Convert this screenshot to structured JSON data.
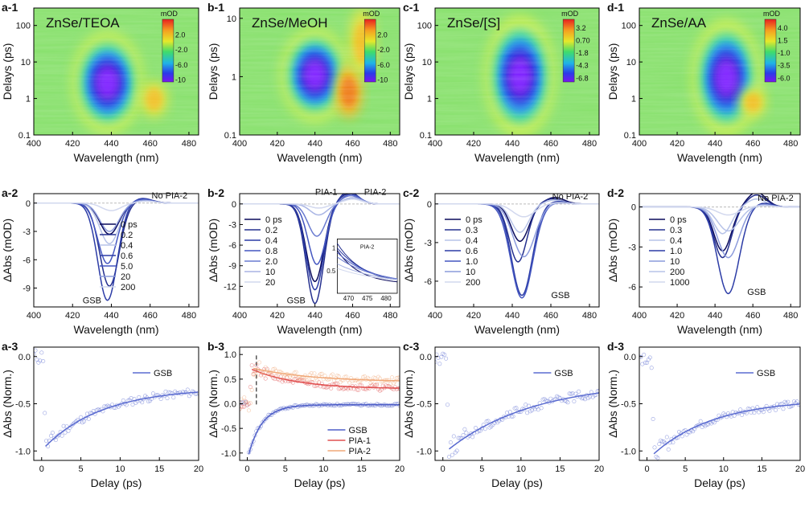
{
  "chart_data": [
    {
      "id": "a-1",
      "type": "heatmap",
      "panel_label": "a-1",
      "title": "ZnSe/TEOA",
      "xlabel": "Wavelength (nm)",
      "ylabel": "Delays (ps)",
      "xlim": [
        400,
        485
      ],
      "ylim_log": [
        0.1,
        300
      ],
      "xticks": [
        "400",
        "420",
        "440",
        "460",
        "480"
      ],
      "yticks": [
        "0.1",
        "1",
        "10",
        "100"
      ],
      "colorbar": {
        "unit": "mOD",
        "ticks": [
          "2.0",
          "-2.0",
          "-6.0",
          "-10"
        ],
        "range": [
          4,
          -12
        ]
      },
      "features": [
        {
          "label": "GSB",
          "center_wavelength": 438,
          "delay_range_ps": [
            0.3,
            40
          ],
          "value": -10
        },
        {
          "label": "PIA",
          "center_wavelength": 462,
          "delay_range_ps": [
            0.3,
            3
          ],
          "value": 1
        }
      ]
    },
    {
      "id": "b-1",
      "type": "heatmap",
      "panel_label": "b-1",
      "title": "ZnSe/MeOH",
      "xlabel": "Wavelength (nm)",
      "ylabel": "Delays (ps)",
      "xlim": [
        400,
        485
      ],
      "ylim_log": [
        0.1,
        15
      ],
      "xticks": [
        "400",
        "420",
        "440",
        "460",
        "480"
      ],
      "yticks": [
        "0.1",
        "1",
        "10"
      ],
      "colorbar": {
        "unit": "mOD",
        "ticks": [
          "2.0",
          "-2.0",
          "-6.0",
          "-10"
        ],
        "range": [
          4,
          -12
        ]
      },
      "features": [
        {
          "label": "GSB",
          "center_wavelength": 440,
          "delay_range_ps": [
            0.3,
            5
          ],
          "value": -11
        },
        {
          "label": "PIA-1",
          "center_wavelength": 458,
          "delay_range_ps": [
            0.2,
            1.5
          ],
          "value": 3
        },
        {
          "label": "PIA-2",
          "center_wavelength": 465,
          "delay_range_ps": [
            1,
            15
          ],
          "value": 2
        }
      ]
    },
    {
      "id": "c-1",
      "type": "heatmap",
      "panel_label": "c-1",
      "title": "ZnSe/[S]",
      "xlabel": "Wavelength (nm)",
      "ylabel": "Delays (ps)",
      "xlim": [
        400,
        485
      ],
      "ylim_log": [
        0.1,
        300
      ],
      "xticks": [
        "400",
        "420",
        "440",
        "460",
        "480"
      ],
      "yticks": [
        "0.1",
        "1",
        "10",
        "100"
      ],
      "colorbar": {
        "unit": "mOD",
        "ticks": [
          "3.2",
          "0.70",
          "-1.8",
          "-4.3",
          "-6.8"
        ],
        "range": [
          4.5,
          -7.5
        ]
      },
      "features": [
        {
          "label": "GSB",
          "center_wavelength": 444,
          "delay_range_ps": [
            0.3,
            100
          ],
          "value": -7
        }
      ]
    },
    {
      "id": "d-1",
      "type": "heatmap",
      "panel_label": "d-1",
      "title": "ZnSe/AA",
      "xlabel": "Wavelength (nm)",
      "ylabel": "Delays (ps)",
      "xlim": [
        400,
        485
      ],
      "ylim_log": [
        0.1,
        300
      ],
      "xticks": [
        "400",
        "420",
        "440",
        "460",
        "480"
      ],
      "yticks": [
        "0.1",
        "1",
        "10",
        "100"
      ],
      "colorbar": {
        "unit": "mOD",
        "ticks": [
          "4.0",
          "1.5",
          "-1.0",
          "-3.5",
          "-6.0"
        ],
        "range": [
          5.5,
          -7.5
        ]
      },
      "features": [
        {
          "label": "GSB",
          "center_wavelength": 446,
          "delay_range_ps": [
            0.3,
            80
          ],
          "value": -7
        },
        {
          "label": "PIA",
          "center_wavelength": 460,
          "delay_range_ps": [
            0.3,
            2
          ],
          "value": 1
        }
      ]
    },
    {
      "id": "a-2",
      "type": "line",
      "panel_label": "a-2",
      "xlabel": "Wavelength (nm)",
      "ylabel": "ΔAbs (mOD)",
      "xlim": [
        400,
        485
      ],
      "ylim": [
        -11,
        1
      ],
      "xticks": [
        400,
        420,
        440,
        460,
        480
      ],
      "yticks": [
        0,
        -3,
        -6,
        -9
      ],
      "annotations": [
        {
          "text": "No PIA-2",
          "x": 470,
          "y": 0.5
        },
        {
          "text": "GSB",
          "x": 430,
          "y": -10.6
        }
      ],
      "series": [
        {
          "name": "0 ps",
          "color": "#0a0a5c",
          "center": 439,
          "depth": -3.3,
          "width": 7,
          "pia": 0.3
        },
        {
          "name": "0.2",
          "color": "#25308f",
          "center": 439,
          "depth": -8.8,
          "width": 7,
          "pia": 0.4
        },
        {
          "name": "0.4",
          "color": "#b7c3e8",
          "center": 439,
          "depth": -4.3,
          "width": 7,
          "pia": 0.3
        },
        {
          "name": "0.6",
          "color": "#2c3ca6",
          "center": 438,
          "depth": -10.3,
          "width": 7,
          "pia": 0.5
        },
        {
          "name": "5.0",
          "color": "#4456c0",
          "center": 438,
          "depth": -6.4,
          "width": 7,
          "pia": 0.4
        },
        {
          "name": "20",
          "color": "#8c9bdc",
          "center": 439,
          "depth": -3.0,
          "width": 7,
          "pia": 0.3
        },
        {
          "name": "200",
          "color": "#d2d8ee",
          "center": 440,
          "depth": -0.8,
          "width": 7,
          "pia": 0.2
        }
      ]
    },
    {
      "id": "b-2",
      "type": "line",
      "panel_label": "b-2",
      "xlabel": "Wavelength (nm)",
      "ylabel": "ΔAbs (mOD)",
      "xlim": [
        400,
        485
      ],
      "ylim": [
        -15,
        1.5
      ],
      "xticks": [
        400,
        420,
        440,
        460,
        480
      ],
      "yticks": [
        0,
        -3,
        -6,
        -9,
        -12
      ],
      "annotations": [
        {
          "text": "PIA-1",
          "x": 446,
          "y": 1.3
        },
        {
          "text": "PIA-2",
          "x": 472,
          "y": 1.3
        },
        {
          "text": "GSB",
          "x": 430,
          "y": -14.5
        }
      ],
      "inset": {
        "title": "PIA-2",
        "xticks": [
          470,
          475,
          480
        ],
        "yticks": [
          0.5,
          1.0
        ],
        "xlim": [
          467,
          483
        ],
        "ylim": [
          0,
          1.2
        ]
      },
      "series": [
        {
          "name": "0 ps",
          "color": "#0a0a5c",
          "center": 440,
          "depth": -11.3,
          "width": 6.5,
          "pia": 1.5
        },
        {
          "name": "0.2",
          "color": "#25308f",
          "center": 440,
          "depth": -14.5,
          "width": 6.5,
          "pia": 1.8
        },
        {
          "name": "0.4",
          "color": "#2c3ca6",
          "center": 440,
          "depth": -12.5,
          "width": 6.5,
          "pia": 1.6
        },
        {
          "name": "0.8",
          "color": "#4456c0",
          "center": 441,
          "depth": -8.8,
          "width": 6.5,
          "pia": 1.4
        },
        {
          "name": "2.0",
          "color": "#6a7bd0",
          "center": 441,
          "depth": -4.7,
          "width": 6.5,
          "pia": 1.2
        },
        {
          "name": "10",
          "color": "#a8b4e4",
          "center": 442,
          "depth": -1.6,
          "width": 6.5,
          "pia": 0.9
        },
        {
          "name": "20",
          "color": "#d2d8ee",
          "center": 442,
          "depth": -0.6,
          "width": 6.5,
          "pia": 0.7
        }
      ]
    },
    {
      "id": "c-2",
      "type": "line",
      "panel_label": "c-2",
      "xlabel": "Wavelength (nm)",
      "ylabel": "ΔAbs (mOD)",
      "xlim": [
        400,
        485
      ],
      "ylim": [
        -8,
        0.8
      ],
      "xticks": [
        400,
        420,
        440,
        460,
        480
      ],
      "yticks": [
        0,
        -3,
        -6
      ],
      "annotations": [
        {
          "text": "No PIA-2",
          "x": 470,
          "y": 0.35
        },
        {
          "text": "GSB",
          "x": 465,
          "y": -7.3
        }
      ],
      "series": [
        {
          "name": "0 ps",
          "color": "#0a0a5c",
          "center": 444,
          "depth": -2.9,
          "width": 6.5,
          "pia": 0.5
        },
        {
          "name": "0.3",
          "color": "#25308f",
          "center": 443,
          "depth": -4.5,
          "width": 6.5,
          "pia": 0.4
        },
        {
          "name": "0.4",
          "color": "#b7c3e8",
          "center": 444,
          "depth": -2.2,
          "width": 6.5,
          "pia": 0.3
        },
        {
          "name": "0.6",
          "color": "#2c3ca6",
          "center": 445,
          "depth": -7.1,
          "width": 7.5,
          "pia": 0.2
        },
        {
          "name": "1.0",
          "color": "#4456c0",
          "center": 445,
          "depth": -7.3,
          "width": 8,
          "pia": 0.1
        },
        {
          "name": "10",
          "color": "#8c9bdc",
          "center": 446,
          "depth": -4.1,
          "width": 8,
          "pia": 0.1
        },
        {
          "name": "200",
          "color": "#d2d8ee",
          "center": 446,
          "depth": -1.0,
          "width": 8,
          "pia": 0.1
        }
      ]
    },
    {
      "id": "d-2",
      "type": "line",
      "panel_label": "d-2",
      "xlabel": "Wavelength (nm)",
      "ylabel": "ΔAbs (mOD)",
      "xlim": [
        400,
        485
      ],
      "ylim": [
        -7.5,
        1.0
      ],
      "xticks": [
        400,
        420,
        440,
        460,
        480
      ],
      "yticks": [
        0,
        -3,
        -6
      ],
      "annotations": [
        {
          "text": "No PIA-2",
          "x": 472,
          "y": 0.45
        },
        {
          "text": "GSB",
          "x": 462,
          "y": -6.6
        }
      ],
      "series": [
        {
          "name": "0 ps",
          "color": "#0a0a5c",
          "center": 444,
          "depth": -3.3,
          "width": 6.5,
          "pia": 1.1
        },
        {
          "name": "0.3",
          "color": "#25308f",
          "center": 444,
          "depth": -3.8,
          "width": 6.5,
          "pia": 0.9
        },
        {
          "name": "0.4",
          "color": "#b7c3e8",
          "center": 444,
          "depth": -2.0,
          "width": 6.5,
          "pia": 0.6
        },
        {
          "name": "1.0",
          "color": "#2c3ca6",
          "center": 447,
          "depth": -6.5,
          "width": 8,
          "pia": 0.3
        },
        {
          "name": "10",
          "color": "#8c9bdc",
          "center": 447,
          "depth": -3.8,
          "width": 8,
          "pia": 0.2
        },
        {
          "name": "200",
          "color": "#b7c3e8",
          "center": 447,
          "depth": -1.8,
          "width": 8,
          "pia": 0.1
        },
        {
          "name": "1000",
          "color": "#d2d8ee",
          "center": 447,
          "depth": -0.6,
          "width": 8,
          "pia": 0.1
        }
      ]
    },
    {
      "id": "a-3",
      "type": "scatter",
      "panel_label": "a-3",
      "xlabel": "Delay (ps)",
      "ylabel": "ΔAbs (Norm.)",
      "xlim": [
        -1,
        20
      ],
      "ylim": [
        -1.1,
        0.1
      ],
      "xticks": [
        0,
        5,
        10,
        15,
        20
      ],
      "yticks": [
        "0.0",
        "-0.5",
        "-1.0"
      ],
      "series": [
        {
          "name": "GSB",
          "color": "#5a6bd0",
          "amplitude": -0.62,
          "tau": 7.5,
          "offset": -0.33,
          "t0": 0.5,
          "rise": 0.25,
          "noise": 0.04
        }
      ]
    },
    {
      "id": "b-3",
      "type": "scatter",
      "panel_label": "b-3",
      "xlabel": "Delay (ps)",
      "ylabel": "ΔAbs (Norm.)",
      "xlim": [
        -1,
        20
      ],
      "ylim": [
        -1.15,
        1.15
      ],
      "xticks": [
        0,
        5,
        10,
        15,
        20
      ],
      "yticks": [
        "1.0",
        "0.5",
        "0.0",
        "-0.5",
        "-1.0"
      ],
      "series": [
        {
          "name": "GSB",
          "color": "#4f5fc8",
          "amplitude": -1.0,
          "tau": 1.8,
          "offset": -0.02,
          "t0": 0.2,
          "rise": 0.2,
          "noise": 0.02
        },
        {
          "name": "PIA-1",
          "color": "#e05050",
          "amplitude": 0.4,
          "tau": 6,
          "offset": 0.3,
          "t0": 0.6,
          "rise": 0.3,
          "noise": 0.06
        },
        {
          "name": "PIA-2",
          "color": "#f0a878",
          "amplitude": 0.28,
          "tau": 8,
          "offset": 0.44,
          "t0": 0.8,
          "rise": 0.4,
          "noise": 0.08
        }
      ],
      "marker_line_x": 1.2
    },
    {
      "id": "c-3",
      "type": "scatter",
      "panel_label": "c-3",
      "xlabel": "Delay (ps)",
      "ylabel": "ΔAbs (Norm.)",
      "xlim": [
        -1,
        20
      ],
      "ylim": [
        -1.1,
        0.1
      ],
      "xticks": [
        0,
        5,
        10,
        15,
        20
      ],
      "yticks": [
        "0.0",
        "-0.5",
        "-1.0"
      ],
      "series": [
        {
          "name": "GSB",
          "color": "#5a6bd0",
          "amplitude": -0.72,
          "tau": 11,
          "offset": -0.26,
          "t0": 0.8,
          "rise": 0.35,
          "noise": 0.05
        }
      ]
    },
    {
      "id": "d-3",
      "type": "scatter",
      "panel_label": "d-3",
      "xlabel": "Delay (ps)",
      "ylabel": "ΔAbs (Norm.)",
      "xlim": [
        -1,
        20
      ],
      "ylim": [
        -1.1,
        0.1
      ],
      "xticks": [
        0,
        5,
        10,
        15,
        20
      ],
      "yticks": [
        "0.0",
        "-0.5",
        "-1.0"
      ],
      "series": [
        {
          "name": "GSB",
          "color": "#5a6bd0",
          "amplitude": -0.58,
          "tau": 8,
          "offset": -0.45,
          "t0": 0.9,
          "rise": 0.35,
          "noise": 0.04
        }
      ]
    }
  ]
}
